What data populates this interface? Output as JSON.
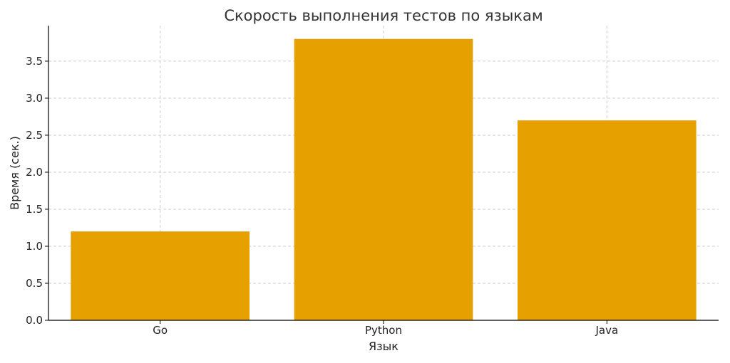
{
  "chart_data": {
    "type": "bar",
    "title": "Скорость выполнения тестов по языкам",
    "xlabel": "Язык",
    "ylabel": "Время (сек.)",
    "categories": [
      "Go",
      "Python",
      "Java"
    ],
    "values": [
      1.2,
      3.8,
      2.7
    ],
    "ylim": [
      0,
      3.98
    ],
    "yticks": [
      0.0,
      0.5,
      1.0,
      1.5,
      2.0,
      2.5,
      3.0,
      3.5
    ],
    "ytick_labels": [
      "0.0",
      "0.5",
      "1.0",
      "1.5",
      "2.0",
      "2.5",
      "3.0",
      "3.5"
    ],
    "grid": true,
    "bar_color": "#E6A000"
  }
}
